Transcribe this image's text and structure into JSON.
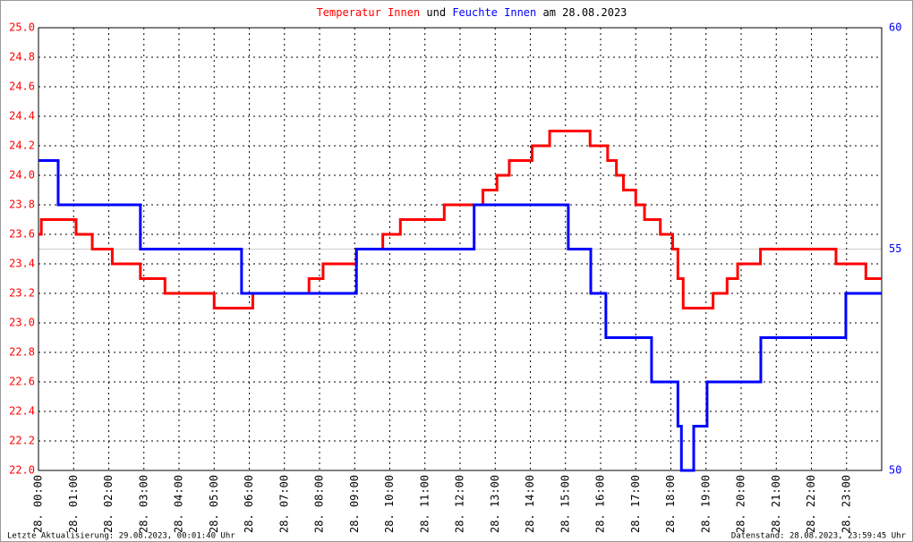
{
  "chart_data": {
    "type": "line",
    "step": "post",
    "title_join": "und",
    "title_date": "am 28.08.2023",
    "footer_left": "Letzte Aktualisierung: 29.08.2023, 00:01:40 Uhr",
    "footer_right": "Datenstand: 28.08.2023, 23:59:45 Uhr",
    "xlim": [
      0,
      24
    ],
    "xticks": [
      {
        "value": 0,
        "label": "28. 00:00"
      },
      {
        "value": 1,
        "label": "28. 01:00"
      },
      {
        "value": 2,
        "label": "28. 02:00"
      },
      {
        "value": 3,
        "label": "28. 03:00"
      },
      {
        "value": 4,
        "label": "28. 04:00"
      },
      {
        "value": 5,
        "label": "28. 05:00"
      },
      {
        "value": 6,
        "label": "28. 06:00"
      },
      {
        "value": 7,
        "label": "28. 07:00"
      },
      {
        "value": 8,
        "label": "28. 08:00"
      },
      {
        "value": 9,
        "label": "28. 09:00"
      },
      {
        "value": 10,
        "label": "28. 10:00"
      },
      {
        "value": 11,
        "label": "28. 11:00"
      },
      {
        "value": 12,
        "label": "28. 12:00"
      },
      {
        "value": 13,
        "label": "28. 13:00"
      },
      {
        "value": 14,
        "label": "28. 14:00"
      },
      {
        "value": 15,
        "label": "28. 15:00"
      },
      {
        "value": 16,
        "label": "28. 16:00"
      },
      {
        "value": 17,
        "label": "28. 17:00"
      },
      {
        "value": 18,
        "label": "28. 18:00"
      },
      {
        "value": 19,
        "label": "28. 19:00"
      },
      {
        "value": 20,
        "label": "28. 20:00"
      },
      {
        "value": 21,
        "label": "28. 21:00"
      },
      {
        "value": 22,
        "label": "28. 22:00"
      },
      {
        "value": 23,
        "label": "28. 23:00"
      }
    ],
    "ylim": [
      22,
      25
    ],
    "yticks": [
      {
        "value": 22,
        "label": "22.0"
      },
      22.2,
      22.4,
      22.6,
      22.8,
      {
        "value": 23,
        "label": "23.0"
      },
      23.2,
      23.4,
      23.6,
      23.8,
      {
        "value": 24,
        "label": "24.0"
      },
      24.2,
      24.4,
      24.6,
      24.8,
      {
        "value": 25,
        "label": "25.0"
      }
    ],
    "y2lim": [
      50,
      60
    ],
    "y2ticks": [
      50,
      55,
      60
    ],
    "grid": true,
    "series": [
      {
        "name": "Temperatur Innen",
        "color": "#ff0000",
        "x": [
          0,
          0.08,
          1.07,
          1.53,
          2.1,
          2.9,
          3.6,
          5.0,
          6.1,
          7.7,
          8.1,
          9.05,
          9.8,
          10.3,
          11.55,
          12.65,
          13.05,
          13.4,
          14.05,
          14.55,
          15.7,
          16.2,
          16.45,
          16.65,
          17.0,
          17.25,
          17.7,
          18.05,
          18.2,
          18.35,
          19.2,
          19.6,
          19.9,
          20.55,
          22.7,
          23.55
        ],
        "values": [
          23.6,
          23.7,
          23.6,
          23.5,
          23.4,
          23.3,
          23.2,
          23.1,
          23.2,
          23.3,
          23.4,
          23.5,
          23.6,
          23.7,
          23.8,
          23.9,
          24.0,
          24.1,
          24.2,
          24.3,
          24.2,
          24.1,
          24.0,
          23.9,
          23.8,
          23.7,
          23.6,
          23.5,
          23.3,
          23.1,
          23.2,
          23.3,
          23.4,
          23.5,
          23.4,
          23.3
        ]
      },
      {
        "name": "Feuchte Innen",
        "color": "#0000ff",
        "axis": "y2",
        "x": [
          0,
          0.56,
          2.9,
          5.78,
          9.05,
          12.4,
          15.08,
          15.72,
          16.15,
          17.45,
          18.2,
          18.3,
          18.65,
          19.03,
          20.56,
          22.98
        ],
        "values": [
          57,
          56,
          55,
          54,
          55,
          56,
          55,
          54,
          53,
          52,
          51,
          50,
          51,
          52,
          53,
          54
        ]
      }
    ]
  }
}
